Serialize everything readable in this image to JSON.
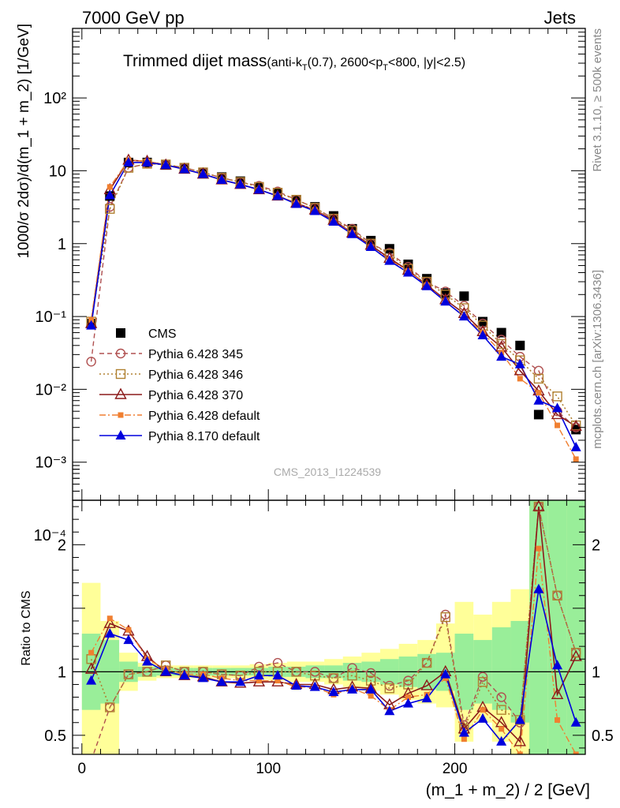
{
  "header": {
    "left": "7000 GeV pp",
    "right": "Jets"
  },
  "side_labels": {
    "rivet": "Rivet 3.1.10, ≥ 500k events",
    "mcplots": "mcplots.cern.ch [arXiv:1306.3436]"
  },
  "watermark": "CMS_2013_I1224539",
  "title": {
    "main": "Trimmed dijet mass",
    "sub_prefix": "(anti-k",
    "sub_T1": "T",
    "sub_mid": "(0.7), 2600<p",
    "sub_T2": "T",
    "sub_suffix": "<800, |y|<2.5)"
  },
  "chart_data": [
    {
      "type": "scatter",
      "panel": "main",
      "ylabel": "1000/σ 2dσ)/d(m_1 + m_2) [1/GeV]",
      "yscale": "log",
      "ylim": [
        0.0003,
        900
      ],
      "xlim": [
        -5,
        270
      ],
      "y_tick_labels": [
        "10⁻⁴",
        "10⁻³",
        "10⁻²",
        "10⁻¹",
        "1",
        "10",
        "10²"
      ],
      "x": [
        5,
        15,
        25,
        35,
        45,
        55,
        65,
        75,
        85,
        95,
        105,
        115,
        125,
        135,
        145,
        155,
        165,
        175,
        185,
        195,
        205,
        215,
        225,
        235,
        245,
        255,
        265
      ],
      "series": [
        {
          "name": "CMS",
          "color": "#000000",
          "values": [
            0.08,
            4.5,
            13,
            13,
            12,
            11,
            9.5,
            8.2,
            7.2,
            6.0,
            5.0,
            4.0,
            3.2,
            2.4,
            1.6,
            1.1,
            0.85,
            0.52,
            0.33,
            0.21,
            0.19,
            0.085,
            0.06,
            0.04,
            0.0045,
            null,
            0.0028
          ]
        },
        {
          "name": "Pythia 6.428 345",
          "color": "#b05050",
          "values": [
            0.024,
            3.2,
            11,
            12.5,
            12.2,
            11,
            9.5,
            8,
            7,
            6.2,
            5.2,
            4.0,
            3.1,
            2.2,
            1.6,
            1.0,
            0.75,
            0.48,
            0.3,
            0.22,
            0.14,
            0.08,
            0.048,
            0.028,
            0.018,
            0.005,
            0.003
          ]
        },
        {
          "name": "Pythia 6.428 346",
          "color": "#b08030",
          "values": [
            0.085,
            3.0,
            11,
            12.5,
            12.2,
            11,
            9.5,
            8,
            7,
            6.0,
            5.0,
            4.0,
            3.1,
            2.2,
            1.5,
            1.0,
            0.72,
            0.45,
            0.3,
            0.2,
            0.13,
            0.075,
            0.042,
            0.025,
            0.014,
            0.008,
            0.0032
          ]
        },
        {
          "name": "Pythia 6.428 370",
          "color": "#8b1a1a",
          "values": [
            0.08,
            5.5,
            14,
            13.5,
            12,
            10.5,
            9,
            7.5,
            6.5,
            5.5,
            4.5,
            3.6,
            2.9,
            2.1,
            1.4,
            0.95,
            0.63,
            0.43,
            0.27,
            0.17,
            0.11,
            0.062,
            0.038,
            0.018,
            0.0095,
            0.0045,
            0.0031
          ]
        },
        {
          "name": "Pythia 6.428 default",
          "color": "#f07f30",
          "values": [
            0.09,
            6.0,
            14,
            13.5,
            12,
            10.5,
            9,
            7.5,
            6.5,
            5.5,
            4.5,
            3.6,
            2.9,
            2.0,
            1.4,
            0.9,
            0.6,
            0.42,
            0.27,
            0.16,
            0.1,
            0.06,
            0.032,
            0.014,
            0.009,
            0.0032,
            0.0011
          ]
        },
        {
          "name": "Pythia 8.170 default",
          "color": "#0000dd",
          "values": [
            0.075,
            4.6,
            13,
            13,
            12,
            10.5,
            9,
            7.5,
            6.5,
            5.5,
            4.5,
            3.5,
            2.8,
            2.0,
            1.35,
            0.9,
            0.58,
            0.4,
            0.26,
            0.16,
            0.1,
            0.055,
            0.028,
            0.022,
            0.007,
            0.0055,
            0.0016
          ]
        }
      ]
    },
    {
      "type": "scatter",
      "panel": "ratio",
      "ylabel": "Ratio to CMS",
      "xlabel": "(m_1 + m_2) / 2 [GeV]",
      "ylim": [
        0.35,
        2.35
      ],
      "xlim": [
        -5,
        270
      ],
      "x_tick_labels": [
        "0",
        "100",
        "200"
      ],
      "y_tick_labels": [
        "0.5",
        "1",
        "2"
      ],
      "band_yellow": [
        [
          0.3,
          1.7
        ],
        [
          0.3,
          1.4
        ],
        [
          0.85,
          1.15
        ],
        [
          0.93,
          1.07
        ],
        [
          0.95,
          1.05
        ],
        [
          0.95,
          1.05
        ],
        [
          0.95,
          1.05
        ],
        [
          0.95,
          1.05
        ],
        [
          0.95,
          1.05
        ],
        [
          0.94,
          1.06
        ],
        [
          0.93,
          1.07
        ],
        [
          0.92,
          1.08
        ],
        [
          0.92,
          1.08
        ],
        [
          0.9,
          1.1
        ],
        [
          0.88,
          1.12
        ],
        [
          0.85,
          1.15
        ],
        [
          0.82,
          1.18
        ],
        [
          0.78,
          1.22
        ],
        [
          0.75,
          1.25
        ],
        [
          0.72,
          1.38
        ],
        [
          0.45,
          1.55
        ],
        [
          0.6,
          1.45
        ],
        [
          0.45,
          1.55
        ],
        [
          0.35,
          1.65
        ],
        [
          0.35,
          2.35
        ],
        [
          0.35,
          2.35
        ],
        [
          0.35,
          2.35
        ]
      ],
      "band_green": [
        [
          0.7,
          1.3
        ],
        [
          0.75,
          1.25
        ],
        [
          0.92,
          1.08
        ],
        [
          0.96,
          1.04
        ],
        [
          0.97,
          1.03
        ],
        [
          0.97,
          1.03
        ],
        [
          0.97,
          1.03
        ],
        [
          0.97,
          1.03
        ],
        [
          0.97,
          1.03
        ],
        [
          0.97,
          1.03
        ],
        [
          0.96,
          1.04
        ],
        [
          0.96,
          1.04
        ],
        [
          0.95,
          1.05
        ],
        [
          0.95,
          1.05
        ],
        [
          0.93,
          1.07
        ],
        [
          0.92,
          1.08
        ],
        [
          0.9,
          1.1
        ],
        [
          0.88,
          1.12
        ],
        [
          0.86,
          1.14
        ],
        [
          0.85,
          1.15
        ],
        [
          0.7,
          1.3
        ],
        [
          0.75,
          1.25
        ],
        [
          0.7,
          1.35
        ],
        [
          0.6,
          1.4
        ],
        [
          0.35,
          2.35
        ],
        [
          0.35,
          2.35
        ],
        [
          0.35,
          2.35
        ]
      ],
      "series": [
        {
          "name": "Pythia 6.428 345",
          "values": [
            0.3,
            0.72,
            0.98,
            1.0,
            1.05,
            1.0,
            1.0,
            0.98,
            0.97,
            1.04,
            1.07,
            1.0,
            1.0,
            0.95,
            1.03,
            0.99,
            0.89,
            0.93,
            1.07,
            1.45,
            0.58,
            0.96,
            0.8,
            0.6,
            2.3,
            1.6,
            1.15
          ]
        },
        {
          "name": "Pythia 6.428 346",
          "values": [
            1.1,
            0.72,
            0.98,
            1.0,
            1.05,
            1.0,
            1.0,
            0.98,
            0.97,
            1.0,
            1.0,
            1.0,
            0.97,
            0.95,
            0.97,
            0.93,
            0.87,
            0.9,
            1.07,
            1.43,
            0.55,
            0.92,
            0.7,
            0.62,
            2.3,
            1.6,
            1.15
          ]
        },
        {
          "name": "Pythia 6.428 370",
          "values": [
            1.02,
            1.38,
            1.32,
            1.12,
            1.0,
            0.97,
            0.96,
            0.92,
            0.91,
            0.92,
            0.92,
            0.9,
            0.9,
            0.86,
            0.88,
            0.87,
            0.74,
            0.83,
            0.89,
            1.0,
            0.55,
            0.72,
            0.6,
            0.45,
            2.3,
            0.82,
            1.12
          ]
        },
        {
          "name": "Pythia 6.428 default",
          "values": [
            1.15,
            1.42,
            1.33,
            1.1,
            1.02,
            0.98,
            0.98,
            0.95,
            0.93,
            0.93,
            0.93,
            0.88,
            0.88,
            0.82,
            0.87,
            0.81,
            0.7,
            0.8,
            0.82,
            0.95,
            0.47,
            0.7,
            0.55,
            0.35,
            1.97,
            0.62,
            0.35
          ]
        },
        {
          "name": "Pythia 8.170 default",
          "values": [
            0.93,
            1.3,
            1.25,
            1.08,
            1.0,
            0.97,
            0.95,
            0.92,
            0.92,
            0.97,
            0.97,
            0.89,
            0.88,
            0.84,
            0.86,
            0.86,
            0.69,
            0.75,
            0.79,
            0.98,
            0.52,
            0.63,
            0.45,
            0.62,
            1.65,
            1.05,
            0.6
          ]
        }
      ]
    }
  ]
}
